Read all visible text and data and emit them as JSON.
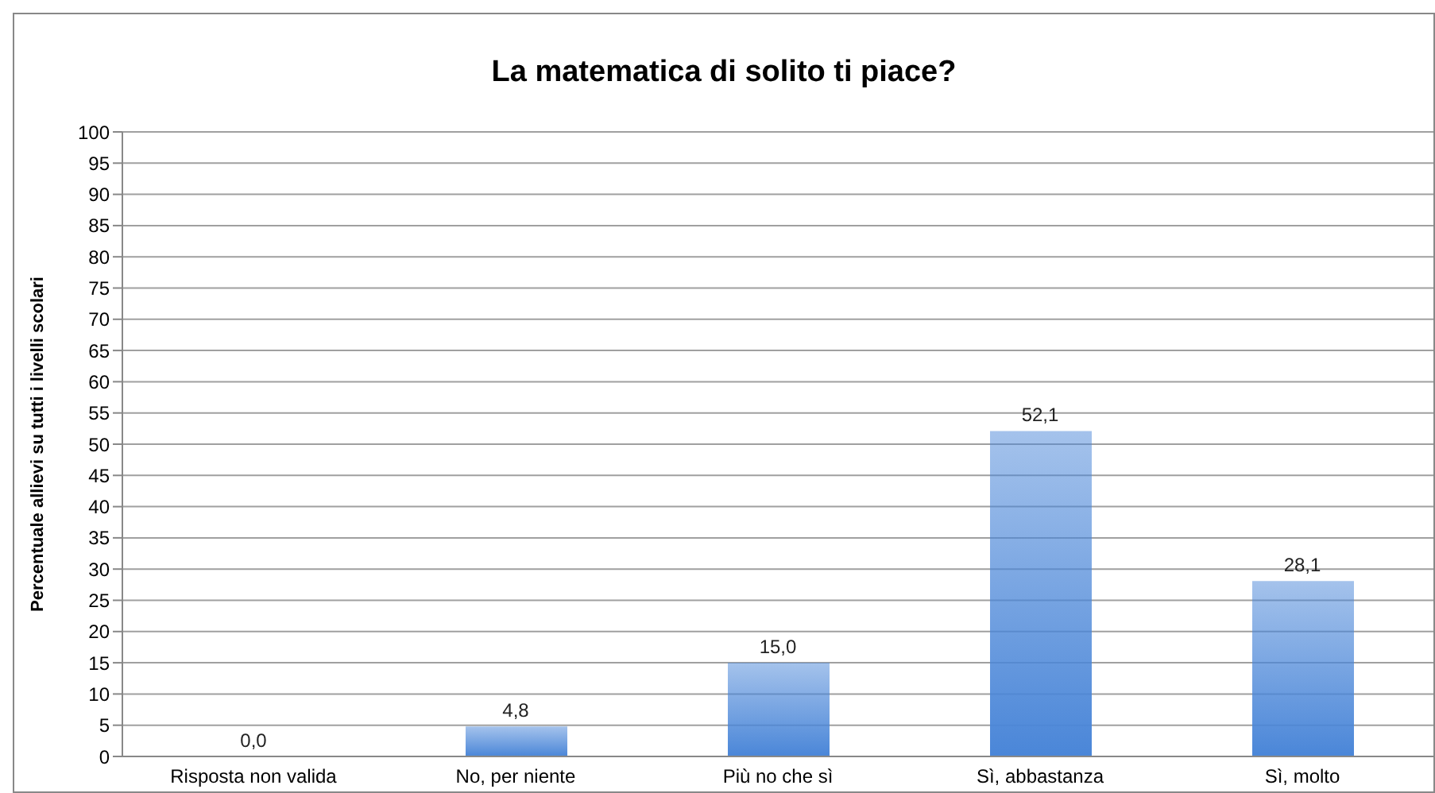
{
  "chart_data": {
    "type": "bar",
    "title": "La matematica di solito ti piace?",
    "ylabel": "Percentuale allievi su tutti i livelli scolari",
    "categories": [
      "Risposta non valida",
      "No, per niente",
      "Più no che sì",
      "Sì, abbastanza",
      "Sì, molto"
    ],
    "values": [
      0.0,
      4.8,
      15.0,
      52.1,
      28.1
    ],
    "value_labels": [
      "0,0",
      "4,8",
      "15,0",
      "52,1",
      "28,1"
    ],
    "color": "#4a86d8",
    "ylim": [
      0,
      100
    ],
    "yticks": [
      0,
      5,
      10,
      15,
      20,
      25,
      30,
      35,
      40,
      45,
      50,
      55,
      60,
      65,
      70,
      75,
      80,
      85,
      90,
      95,
      100
    ],
    "grid": "y"
  }
}
